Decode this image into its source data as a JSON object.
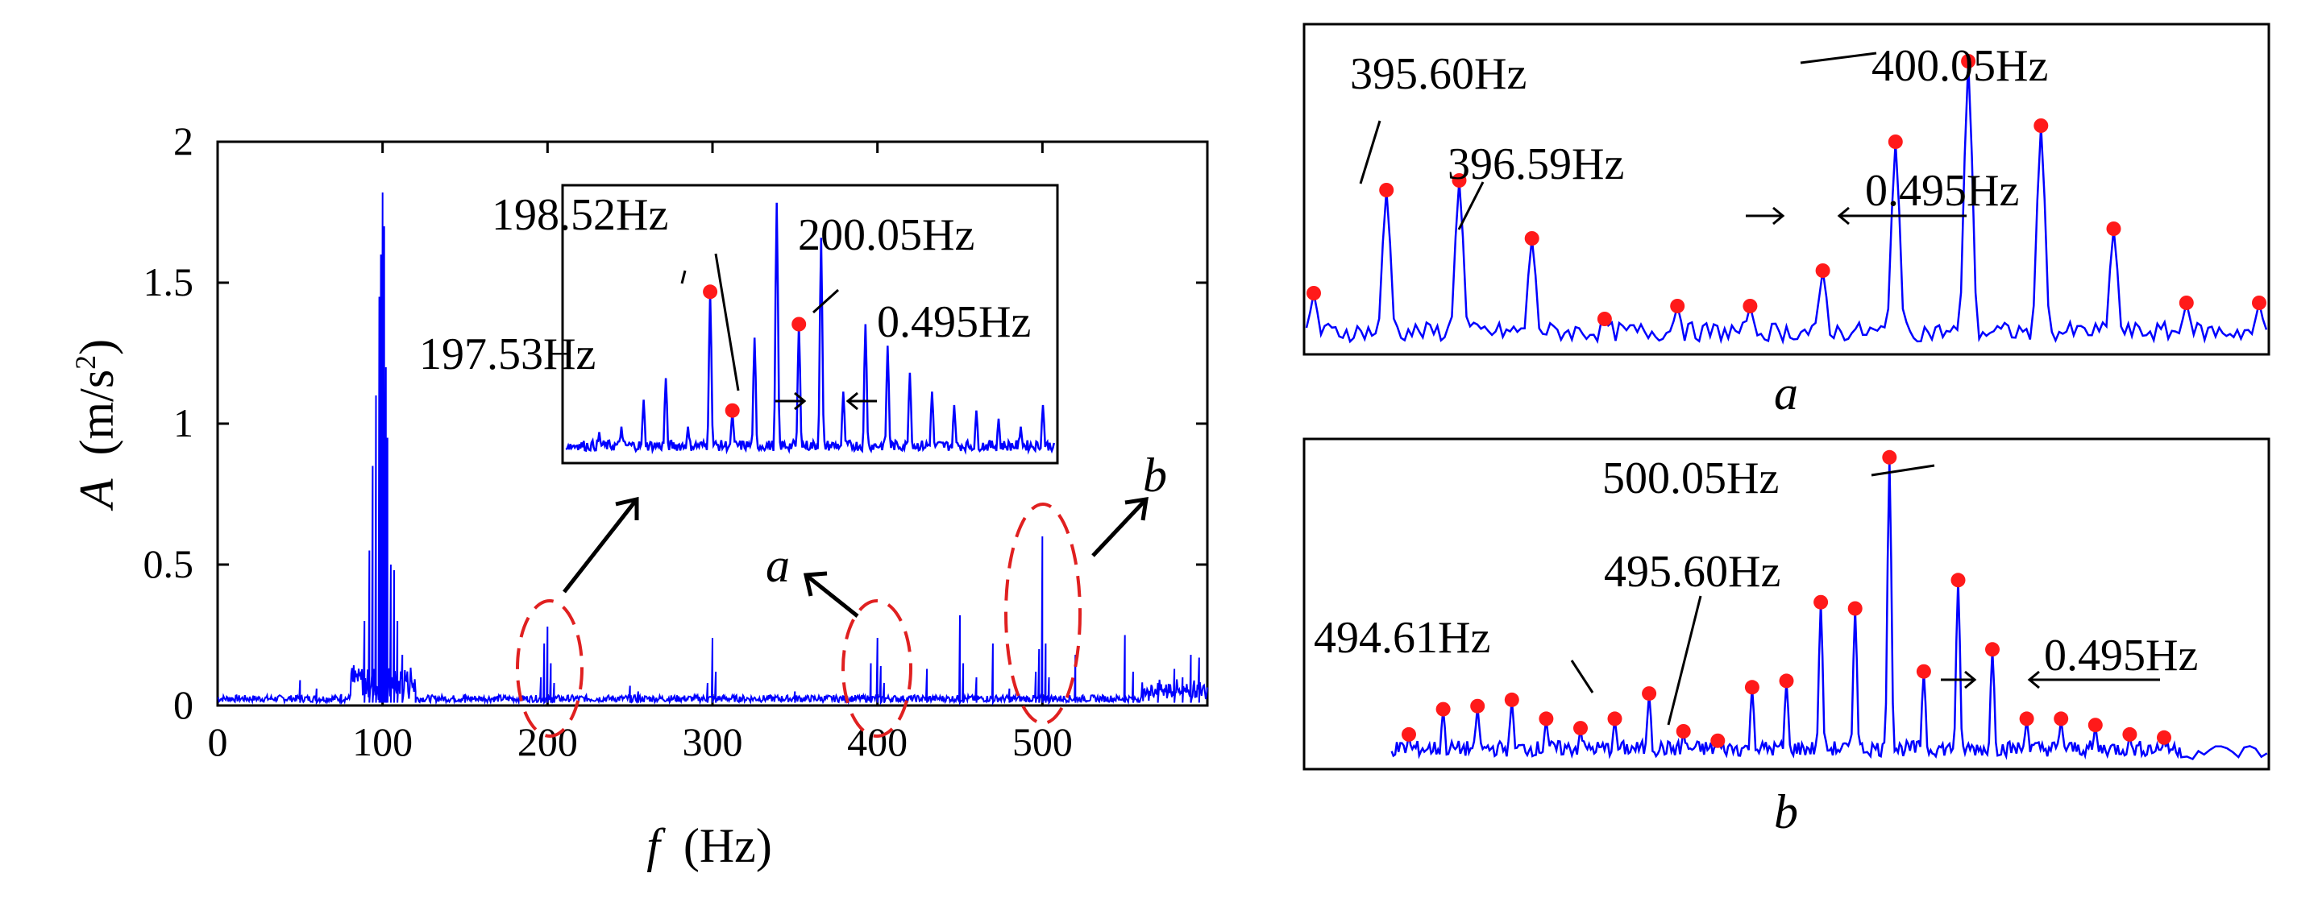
{
  "chart_data": [
    {
      "id": "main",
      "type": "line",
      "title": "",
      "xlabel": {
        "symbol": "f",
        "unit": "(Hz)"
      },
      "ylabel": {
        "symbol": "A",
        "unit_prefix": "(m/s",
        "unit_exp": "2",
        "unit_suffix": ")"
      },
      "xlim": [
        0,
        600
      ],
      "ylim": [
        0,
        2
      ],
      "xticks": [
        0,
        100,
        200,
        300,
        400,
        500
      ],
      "xtick_labels": [
        "0",
        "100",
        "200",
        "300",
        "400",
        "500"
      ],
      "yticks": [
        0,
        0.5,
        1,
        1.5,
        2
      ],
      "ytick_labels": [
        "0",
        "0.5",
        "1",
        "1.5",
        "2"
      ],
      "color": "#0000ff",
      "peaks": [
        {
          "f": 50,
          "a": 0.09
        },
        {
          "f": 60,
          "a": 0.06
        },
        {
          "f": 75,
          "a": 0.04
        },
        {
          "f": 89,
          "a": 0.3
        },
        {
          "f": 92,
          "a": 0.55
        },
        {
          "f": 94,
          "a": 0.85
        },
        {
          "f": 96,
          "a": 1.1
        },
        {
          "f": 98,
          "a": 1.45
        },
        {
          "f": 99,
          "a": 1.6
        },
        {
          "f": 100,
          "a": 1.82
        },
        {
          "f": 101,
          "a": 1.7
        },
        {
          "f": 102,
          "a": 1.2
        },
        {
          "f": 103,
          "a": 0.95
        },
        {
          "f": 105,
          "a": 0.5
        },
        {
          "f": 107,
          "a": 0.48
        },
        {
          "f": 109,
          "a": 0.3
        },
        {
          "f": 112,
          "a": 0.18
        },
        {
          "f": 120,
          "a": 0.05
        },
        {
          "f": 150,
          "a": 0.04
        },
        {
          "f": 196,
          "a": 0.1
        },
        {
          "f": 198,
          "a": 0.22
        },
        {
          "f": 200,
          "a": 0.28
        },
        {
          "f": 202,
          "a": 0.15
        },
        {
          "f": 204,
          "a": 0.08
        },
        {
          "f": 250,
          "a": 0.07
        },
        {
          "f": 255,
          "a": 0.05
        },
        {
          "f": 297,
          "a": 0.08
        },
        {
          "f": 300,
          "a": 0.24
        },
        {
          "f": 302,
          "a": 0.12
        },
        {
          "f": 350,
          "a": 0.05
        },
        {
          "f": 396,
          "a": 0.15
        },
        {
          "f": 400,
          "a": 0.24
        },
        {
          "f": 402,
          "a": 0.14
        },
        {
          "f": 404,
          "a": 0.08
        },
        {
          "f": 430,
          "a": 0.13
        },
        {
          "f": 450,
          "a": 0.32
        },
        {
          "f": 452,
          "a": 0.15
        },
        {
          "f": 460,
          "a": 0.1
        },
        {
          "f": 470,
          "a": 0.22
        },
        {
          "f": 480,
          "a": 0.06
        },
        {
          "f": 496,
          "a": 0.12
        },
        {
          "f": 498,
          "a": 0.2
        },
        {
          "f": 500,
          "a": 0.6
        },
        {
          "f": 502,
          "a": 0.22
        },
        {
          "f": 504,
          "a": 0.1
        },
        {
          "f": 520,
          "a": 0.18
        },
        {
          "f": 550,
          "a": 0.25
        },
        {
          "f": 555,
          "a": 0.12
        },
        {
          "f": 570,
          "a": 0.08
        },
        {
          "f": 580,
          "a": 0.13
        },
        {
          "f": 585,
          "a": 0.1
        },
        {
          "f": 590,
          "a": 0.18
        },
        {
          "f": 595,
          "a": 0.17
        }
      ],
      "highlights": [
        {
          "label": "",
          "f_center": 200,
          "a_center": 0.12
        },
        {
          "label": "a",
          "f_center": 400,
          "a_center": 0.12
        },
        {
          "label": "b",
          "f_center": 500,
          "a_center": 0.28
        }
      ],
      "inset": {
        "label_left": "198.52Hz",
        "label_right": "200.05Hz",
        "label_low": "197.53Hz",
        "spacing": "0.495Hz",
        "peaks": [
          0.05,
          0.1,
          0.12,
          0.22,
          0.3,
          0.12,
          0.62,
          0.18,
          0.45,
          0.95,
          0.5,
          0.82,
          0.25,
          0.5,
          0.42,
          0.32,
          0.25,
          0.2,
          0.18,
          0.15,
          0.12,
          0.2
        ],
        "markers": [
          6,
          7,
          10
        ]
      }
    },
    {
      "id": "a",
      "type": "line",
      "panel_label": "a",
      "labels": [
        "395.60Hz",
        "396.59Hz",
        "400.05Hz",
        "0.495Hz"
      ],
      "color": "#0000ff",
      "peaks": [
        0.18,
        0.5,
        0.53,
        0.35,
        0.1,
        0.14,
        0.14,
        0.25,
        0.65,
        0.9,
        0.7,
        0.38,
        0.15,
        0.15
      ],
      "markers": [
        0,
        1,
        2,
        3,
        4,
        5,
        6,
        7,
        8,
        9,
        10,
        11,
        12,
        13
      ]
    },
    {
      "id": "b",
      "type": "line",
      "panel_label": "b",
      "labels": [
        "494.61Hz",
        "495.60Hz",
        "500.05Hz",
        "0.495Hz"
      ],
      "color": "#0000ff",
      "peaks": [
        0.1,
        0.18,
        0.19,
        0.21,
        0.15,
        0.12,
        0.15,
        0.23,
        0.11,
        0.08,
        0.25,
        0.27,
        0.52,
        0.5,
        0.98,
        0.3,
        0.59,
        0.37,
        0.15,
        0.15,
        0.13,
        0.1,
        0.09
      ],
      "markers": [
        0,
        1,
        2,
        3,
        4,
        5,
        6,
        7,
        8,
        9,
        10,
        11,
        12,
        13,
        14,
        15,
        16,
        17,
        18,
        19,
        20,
        21,
        22
      ]
    }
  ]
}
